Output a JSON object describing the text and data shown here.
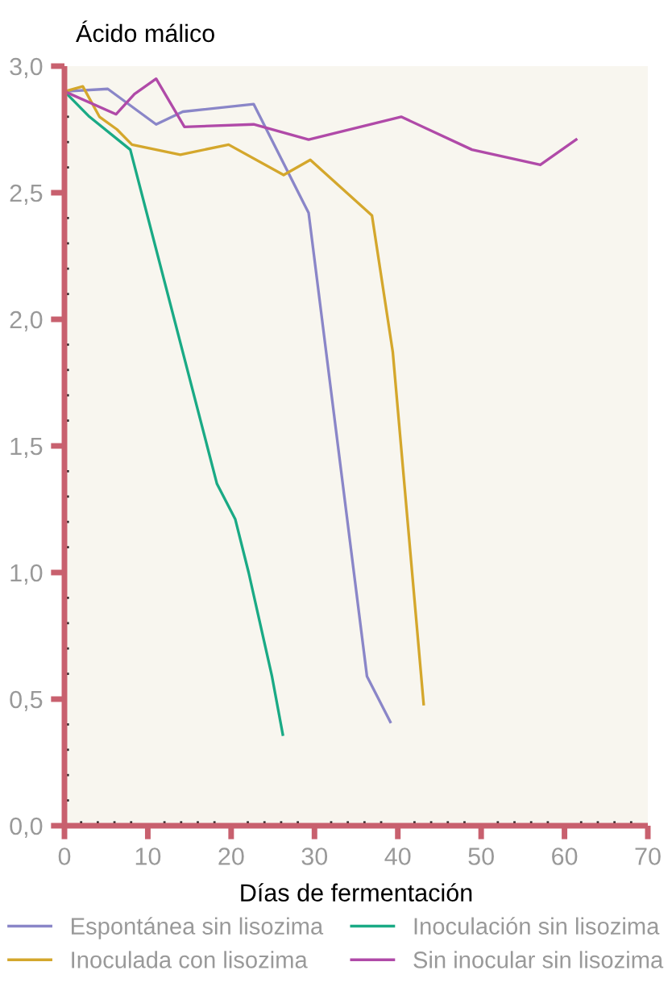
{
  "chart_data": {
    "type": "line",
    "ylabel": "Ácido málico",
    "xlabel": "Días de fermentación",
    "xlim": [
      0,
      70
    ],
    "xticks": [
      0,
      10,
      20,
      30,
      40,
      50,
      60,
      70
    ],
    "ylim": [
      0,
      3
    ],
    "yticks": [
      {
        "value": 0,
        "label": "0,0"
      },
      {
        "value": 0.5,
        "label": "0,5"
      },
      {
        "value": 1,
        "label": "1,0"
      },
      {
        "value": 1.5,
        "label": "1,5"
      },
      {
        "value": 2,
        "label": "2,0"
      },
      {
        "value": 2.5,
        "label": "2,5"
      },
      {
        "value": 3,
        "label": "3,0"
      }
    ],
    "grid": false,
    "legend": "bottom",
    "marker": "none",
    "line_style": "solid",
    "series": [
      {
        "name": "Espontánea sin lisozima",
        "color": "#8a86c8",
        "x": [
          0,
          5.2,
          11.0,
          14.2,
          22.7,
          29.3,
          36.3,
          39.1
        ],
        "values": [
          2.9,
          2.91,
          2.77,
          2.82,
          2.85,
          2.42,
          0.59,
          0.41
        ]
      },
      {
        "name": "Inoculada con lisozima",
        "color": "#d4a72c",
        "x": [
          0,
          2.2,
          4.2,
          6.3,
          8.1,
          13.9,
          19.7,
          26.3,
          29.5,
          36.9,
          39.4,
          43.1
        ],
        "values": [
          2.9,
          2.92,
          2.8,
          2.75,
          2.69,
          2.65,
          2.69,
          2.57,
          2.63,
          2.41,
          1.87,
          0.48
        ]
      },
      {
        "name": "Inoculación sin lisozima",
        "color": "#1aaa85",
        "x": [
          0,
          3.0,
          7.9,
          18.3,
          20.5,
          22.1,
          24.9,
          26.2
        ],
        "values": [
          2.9,
          2.8,
          2.67,
          1.35,
          1.21,
          1.0,
          0.59,
          0.36
        ]
      },
      {
        "name": "Sin inocular sin lisozima",
        "color": "#b04aa8",
        "x": [
          0,
          6.2,
          8.4,
          11.0,
          14.4,
          22.7,
          29.3,
          40.4,
          48.9,
          57.1,
          61.4
        ],
        "values": [
          2.9,
          2.81,
          2.89,
          2.95,
          2.76,
          2.77,
          2.71,
          2.8,
          2.67,
          2.61,
          2.71
        ]
      }
    ]
  }
}
